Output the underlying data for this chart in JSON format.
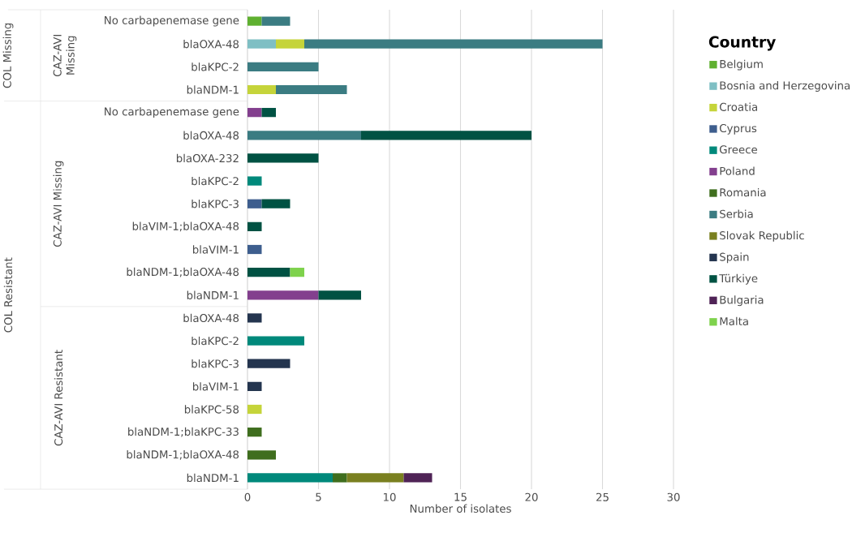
{
  "chart_data": {
    "type": "bar",
    "orientation": "horizontal",
    "stacked": true,
    "categories": [
      "No carbapenemase gene",
      "blaOXA-48",
      "blaKPC-2",
      "blaNDM-1",
      "No carbapenemase gene",
      "blaOXA-48",
      "blaOXA-232",
      "blaKPC-2",
      "blaKPC-3",
      "blaVIM-1;blaOXA-48",
      "blaVIM-1",
      "blaNDM-1;blaOXA-48",
      "blaNDM-1",
      "blaOXA-48",
      "blaKPC-2",
      "blaKPC-3",
      "blaVIM-1",
      "blaKPC-58",
      "blaNDM-1;blaKPC-33",
      "blaNDM-1;blaOXA-48",
      "blaNDM-1"
    ],
    "series": [
      {
        "name": "Belgium",
        "color": "#5fb030",
        "values": [
          1,
          null,
          null,
          null,
          null,
          null,
          null,
          null,
          null,
          null,
          null,
          null,
          null,
          null,
          null,
          null,
          null,
          null,
          null,
          null,
          null
        ]
      },
      {
        "name": "Bosnia and Herzegovina",
        "color": "#7fbfc4",
        "values": [
          null,
          2,
          null,
          null,
          null,
          null,
          null,
          null,
          null,
          null,
          null,
          null,
          null,
          null,
          null,
          null,
          null,
          null,
          null,
          null,
          null
        ]
      },
      {
        "name": "Croatia",
        "color": "#c5d43a",
        "values": [
          null,
          2,
          null,
          2,
          null,
          null,
          null,
          null,
          null,
          null,
          null,
          null,
          null,
          null,
          null,
          null,
          null,
          1,
          null,
          null,
          null
        ]
      },
      {
        "name": "Cyprus",
        "color": "#3e5e8e",
        "values": [
          null,
          null,
          null,
          null,
          null,
          null,
          null,
          null,
          1,
          null,
          1,
          null,
          null,
          null,
          null,
          null,
          null,
          null,
          null,
          null,
          null
        ]
      },
      {
        "name": "Greece",
        "color": "#00897b",
        "values": [
          null,
          null,
          null,
          null,
          null,
          null,
          null,
          1,
          null,
          null,
          null,
          null,
          null,
          null,
          4,
          null,
          null,
          null,
          null,
          null,
          6
        ]
      },
      {
        "name": "Poland",
        "color": "#833f8e",
        "values": [
          null,
          null,
          null,
          null,
          1,
          null,
          null,
          null,
          null,
          null,
          null,
          null,
          5,
          null,
          null,
          null,
          null,
          null,
          null,
          null,
          null
        ]
      },
      {
        "name": "Romania",
        "color": "#3f6e1e",
        "values": [
          null,
          null,
          null,
          null,
          null,
          null,
          null,
          null,
          null,
          null,
          null,
          null,
          null,
          null,
          null,
          null,
          null,
          null,
          1,
          2,
          1
        ]
      },
      {
        "name": "Serbia",
        "color": "#3b7c82",
        "values": [
          2,
          21,
          5,
          5,
          null,
          8,
          null,
          null,
          null,
          null,
          null,
          null,
          null,
          null,
          null,
          null,
          null,
          null,
          null,
          null,
          null
        ]
      },
      {
        "name": "Slovak Republic",
        "color": "#7a8020",
        "values": [
          null,
          null,
          null,
          null,
          null,
          null,
          null,
          null,
          null,
          null,
          null,
          null,
          null,
          null,
          null,
          null,
          null,
          null,
          null,
          null,
          4
        ]
      },
      {
        "name": "Spain",
        "color": "#24354f",
        "values": [
          null,
          null,
          null,
          null,
          null,
          null,
          null,
          null,
          null,
          null,
          null,
          null,
          null,
          1,
          null,
          3,
          1,
          null,
          null,
          null,
          null
        ]
      },
      {
        "name": "Türkiye",
        "color": "#005243",
        "values": [
          null,
          null,
          null,
          null,
          1,
          12,
          5,
          null,
          2,
          1,
          null,
          3,
          3,
          null,
          null,
          null,
          null,
          null,
          null,
          null,
          null
        ]
      },
      {
        "name": "Bulgaria",
        "color": "#4f2356",
        "values": [
          null,
          null,
          null,
          null,
          null,
          null,
          null,
          null,
          null,
          null,
          null,
          null,
          null,
          null,
          null,
          null,
          null,
          null,
          null,
          null,
          2
        ]
      },
      {
        "name": "Malta",
        "color": "#7ed24c",
        "values": [
          null,
          null,
          null,
          null,
          null,
          null,
          null,
          null,
          null,
          null,
          null,
          1,
          null,
          null,
          null,
          null,
          null,
          null,
          null,
          null,
          null
        ]
      }
    ],
    "xlabel": "Number of isolates",
    "legend_title": "Country",
    "xlim": [
      0,
      30
    ],
    "xticks": [
      0,
      5,
      10,
      15,
      20,
      25,
      30
    ],
    "grid": "x",
    "legend": "right",
    "annotations": [
      "COL Missing",
      "COL Resistant",
      "CAZ-AVI Missing",
      "CAZ-AVI Missing",
      "CAZ-AVI Resistant"
    ]
  }
}
